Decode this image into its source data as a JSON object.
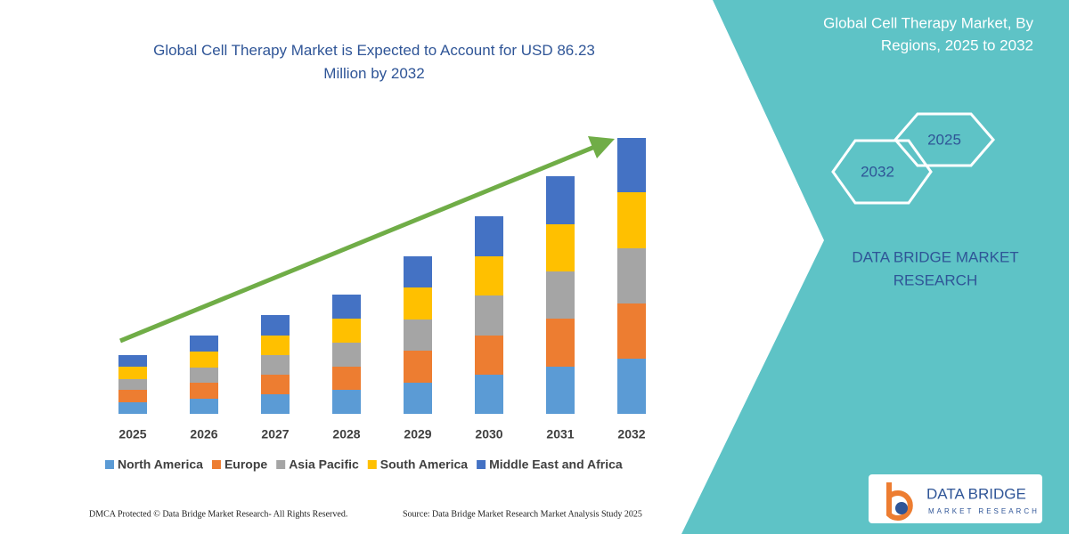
{
  "chart_data": {
    "type": "stacked_bar",
    "title": "Global Cell Therapy Market is Expected to Account for USD 86.23 Million by 2032",
    "categories": [
      "2025",
      "2026",
      "2027",
      "2028",
      "2029",
      "2030",
      "2031",
      "2032"
    ],
    "series": [
      {
        "name": "North America",
        "color": "#5b9bd5",
        "values": [
          13,
          17,
          22,
          27,
          35,
          44,
          53,
          62
        ]
      },
      {
        "name": "Europe",
        "color": "#ed7d31",
        "values": [
          14,
          18,
          22,
          26,
          36,
          44,
          54,
          62
        ]
      },
      {
        "name": "Asia Pacific",
        "color": "#a5a5a5",
        "values": [
          12,
          17,
          22,
          27,
          35,
          45,
          53,
          62
        ]
      },
      {
        "name": "South America",
        "color": "#ffc000",
        "values": [
          14,
          18,
          22,
          27,
          36,
          44,
          53,
          63
        ]
      },
      {
        "name": "Middle East and Africa",
        "color": "#4472c4",
        "values": [
          13,
          18,
          23,
          27,
          35,
          45,
          54,
          61
        ]
      }
    ]
  },
  "panel": {
    "title_line1": "Global Cell Therapy Market, By",
    "title_line2": "Regions, 2025 to 2032",
    "hex_start": "2025",
    "hex_end": "2032",
    "brand_line1": "DATA BRIDGE MARKET",
    "brand_line2": "RESEARCH",
    "logo_name": "DATA BRIDGE",
    "logo_tagline": "MARKET RESEARCH"
  },
  "footer": {
    "copyright": "DMCA Protected © Data Bridge Market Research- All Rights Reserved.",
    "source": "Source: Data Bridge Market Research Market Analysis Study 2025"
  }
}
